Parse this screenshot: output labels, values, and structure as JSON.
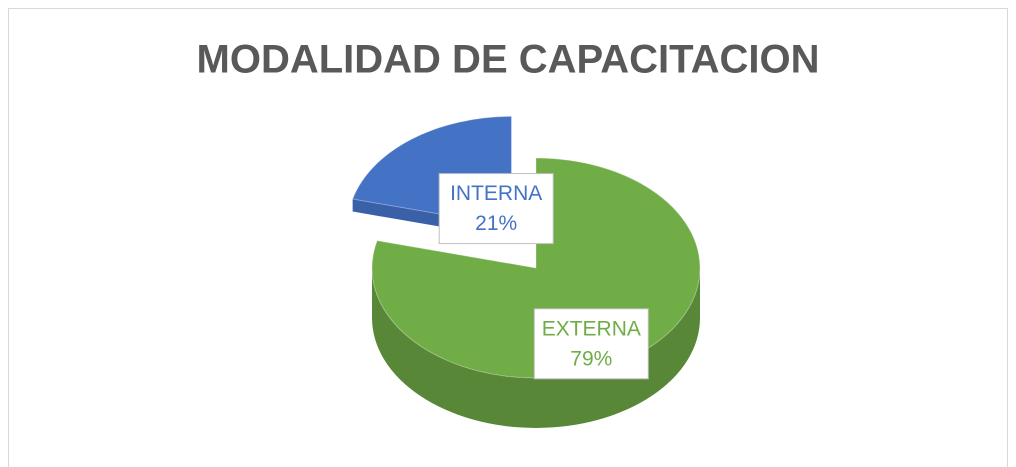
{
  "chart_data": {
    "type": "pie",
    "title": "MODALIDAD DE CAPACITACION",
    "categories": [
      "EXTERNA",
      "INTERNA"
    ],
    "values": [
      79,
      21
    ],
    "value_labels": [
      "79%",
      "21%"
    ],
    "colors": [
      "#70ad47",
      "#4472c4"
    ],
    "exploded": [
      false,
      true
    ]
  }
}
